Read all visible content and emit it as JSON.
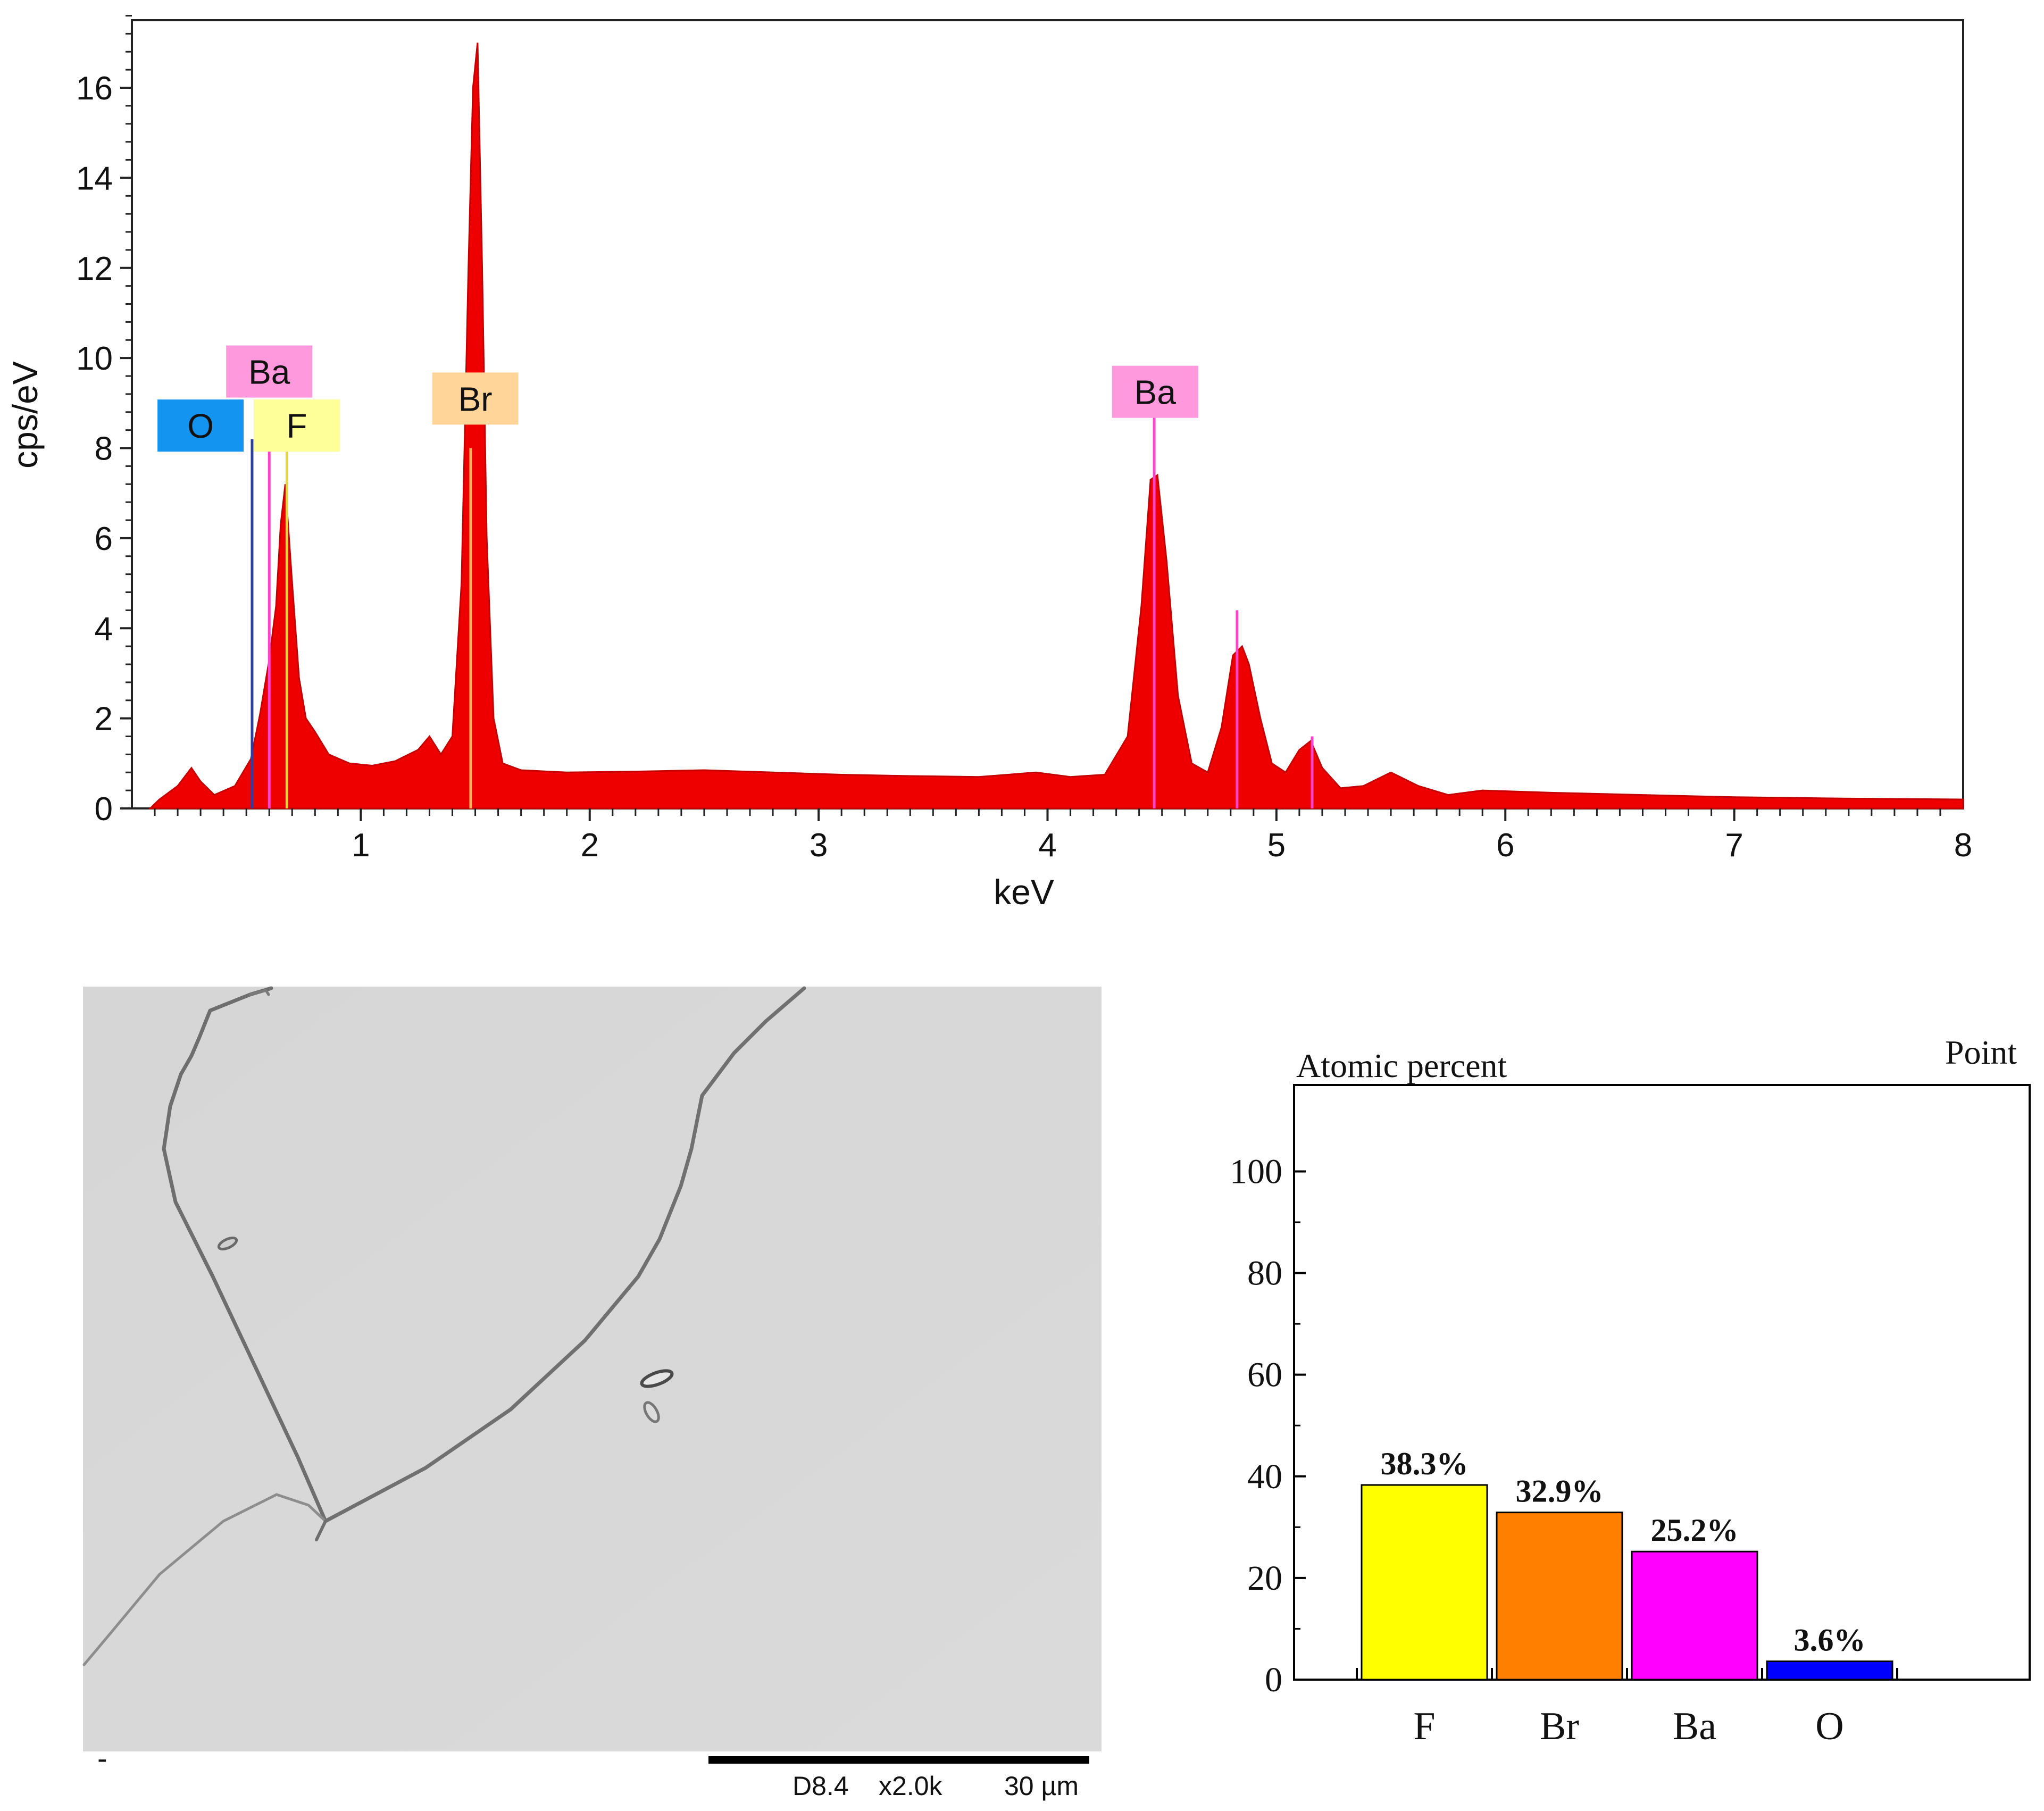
{
  "chart_data": [
    {
      "type": "area",
      "xlabel": "keV",
      "ylabel": "cps/eV",
      "xlim": [
        0,
        8
      ],
      "ylim": [
        0,
        17.5
      ],
      "x_ticks": [
        1,
        2,
        3,
        4,
        5,
        6,
        7,
        8
      ],
      "y_ticks": [
        0,
        2,
        4,
        6,
        8,
        10,
        12,
        14,
        16
      ],
      "grid": false,
      "series_color": "#ee0000",
      "spectrum": {
        "x": [
          0.08,
          0.12,
          0.2,
          0.26,
          0.3,
          0.36,
          0.45,
          0.52,
          0.56,
          0.6,
          0.63,
          0.65,
          0.67,
          0.7,
          0.73,
          0.76,
          0.8,
          0.86,
          0.95,
          1.05,
          1.15,
          1.25,
          1.3,
          1.35,
          1.4,
          1.44,
          1.47,
          1.49,
          1.51,
          1.53,
          1.55,
          1.58,
          1.62,
          1.7,
          1.9,
          2.2,
          2.5,
          2.8,
          3.1,
          3.4,
          3.7,
          3.95,
          4.1,
          4.25,
          4.35,
          4.41,
          4.45,
          4.48,
          4.52,
          4.57,
          4.63,
          4.7,
          4.76,
          4.81,
          4.85,
          4.88,
          4.93,
          4.98,
          5.04,
          5.1,
          5.15,
          5.2,
          5.28,
          5.38,
          5.5,
          5.62,
          5.75,
          5.9,
          6.2,
          6.6,
          7.0,
          7.5,
          8.0
        ],
        "y": [
          0,
          0.2,
          0.5,
          0.9,
          0.6,
          0.3,
          0.5,
          1.1,
          2.1,
          3.3,
          4.5,
          6.3,
          7.2,
          5.0,
          2.9,
          2.0,
          1.7,
          1.2,
          1.0,
          0.95,
          1.05,
          1.3,
          1.6,
          1.2,
          1.6,
          5.0,
          12.0,
          16.0,
          17.0,
          12.0,
          6.0,
          2.0,
          1.0,
          0.85,
          0.8,
          0.82,
          0.85,
          0.8,
          0.75,
          0.72,
          0.7,
          0.8,
          0.7,
          0.75,
          1.6,
          4.5,
          7.3,
          7.4,
          5.5,
          2.5,
          1.0,
          0.8,
          1.8,
          3.4,
          3.6,
          3.2,
          2.0,
          1.0,
          0.8,
          1.3,
          1.5,
          0.9,
          0.45,
          0.5,
          0.8,
          0.5,
          0.3,
          0.4,
          0.35,
          0.3,
          0.25,
          0.22,
          0.2
        ]
      },
      "element_lines": [
        {
          "element": "O",
          "x": 0.525,
          "height": 8.2,
          "color": "#2b3fa0"
        },
        {
          "element": "Ba",
          "x": 0.6,
          "height": 8.2,
          "color": "#ff44cc"
        },
        {
          "element": "F",
          "x": 0.677,
          "height": 8.0,
          "color": "#e3d640"
        },
        {
          "element": "Br",
          "x": 1.48,
          "height": 8.0,
          "color": "#ffb35a"
        },
        {
          "element": "Ba",
          "x": 4.466,
          "height": 8.8,
          "color": "#ff44cc"
        },
        {
          "element": "Ba",
          "x": 4.828,
          "height": 4.4,
          "color": "#ff44cc"
        },
        {
          "element": "Ba",
          "x": 5.156,
          "height": 1.6,
          "color": "#ff44cc"
        }
      ],
      "peak_labels": [
        {
          "text": "Ba",
          "x": 0.6,
          "y": 9.7,
          "color": "#ff99dd"
        },
        {
          "text": "O",
          "x": 0.3,
          "y": 8.5,
          "color": "#1394f0"
        },
        {
          "text": "F",
          "x": 0.72,
          "y": 8.5,
          "color": "#ffff99"
        },
        {
          "text": "Br",
          "x": 1.5,
          "y": 9.1,
          "color": "#ffd599"
        },
        {
          "text": "Ba",
          "x": 4.47,
          "y": 9.25,
          "color": "#ff99dd"
        }
      ]
    },
    {
      "type": "bar",
      "title": "Atomic percent",
      "corner_label": "Point",
      "categories": [
        "F",
        "Br",
        "Ba",
        "O"
      ],
      "values": [
        38.3,
        32.9,
        25.2,
        3.6
      ],
      "value_labels": [
        "38.3%",
        "32.9%",
        "25.2%",
        "3.6%"
      ],
      "colors": [
        "#ffff00",
        "#ff8000",
        "#ff00ff",
        "#0000ff"
      ],
      "ylim": [
        0,
        117
      ],
      "y_ticks": [
        0,
        20,
        40,
        60,
        80,
        100
      ],
      "grid": false
    }
  ],
  "micrograph": {
    "scale_bar": {
      "working_distance": "D8.4",
      "magnification": "x2.0k",
      "length": "30 µm"
    },
    "corner_mark": "-"
  }
}
